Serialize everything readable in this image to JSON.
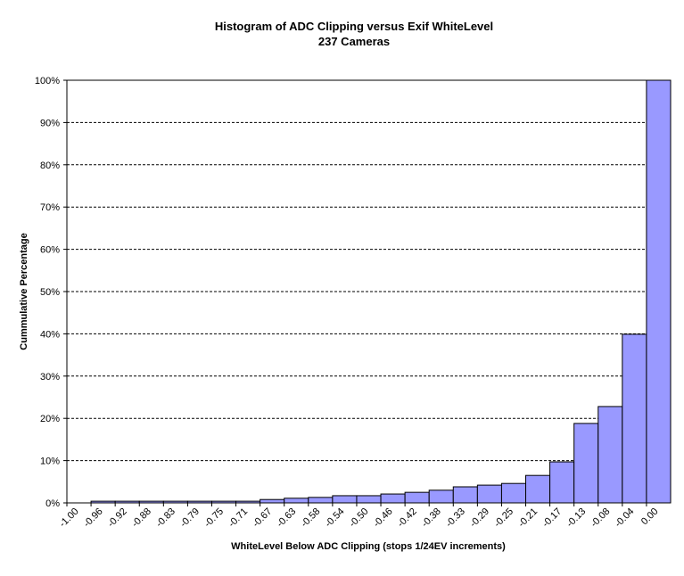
{
  "chart_data": {
    "type": "bar",
    "title": "Histogram of ADC Clipping versus Exif WhiteLevel",
    "subtitle": "237 Cameras",
    "x_label": "WhiteLevel Below ADC Clipping (stops 1/24EV increments)",
    "y_label": "Cummulative Percentage",
    "categories": [
      "-1.00",
      "-0.96",
      "-0.92",
      "-0.88",
      "-0.83",
      "-0.79",
      "-0.75",
      "-0.71",
      "-0.67",
      "-0.63",
      "-0.58",
      "-0.54",
      "-0.50",
      "-0.46",
      "-0.42",
      "-0.38",
      "-0.33",
      "-0.29",
      "-0.25",
      "-0.21",
      "-0.17",
      "-0.13",
      "-0.08",
      "-0.04",
      "0.00"
    ],
    "values": [
      0,
      0.4,
      0.4,
      0.4,
      0.4,
      0.4,
      0.4,
      0.4,
      0.8,
      1.1,
      1.3,
      1.7,
      1.7,
      2.1,
      2.5,
      3.0,
      3.8,
      4.2,
      4.6,
      6.5,
      9.7,
      18.8,
      22.8,
      39.9,
      100
    ],
    "color": "#9999ff",
    "ylim": [
      0,
      100
    ],
    "yticks": [
      {
        "value": 0,
        "label": "0%"
      },
      {
        "value": 10,
        "label": "10%"
      },
      {
        "value": 20,
        "label": "20%"
      },
      {
        "value": 30,
        "label": "30%"
      },
      {
        "value": 40,
        "label": "40%"
      },
      {
        "value": 50,
        "label": "50%"
      },
      {
        "value": 60,
        "label": "60%"
      },
      {
        "value": 70,
        "label": "70%"
      },
      {
        "value": 80,
        "label": "80%"
      },
      {
        "value": 90,
        "label": "90%"
      },
      {
        "value": 100,
        "label": "100%"
      }
    ],
    "grid": true
  }
}
